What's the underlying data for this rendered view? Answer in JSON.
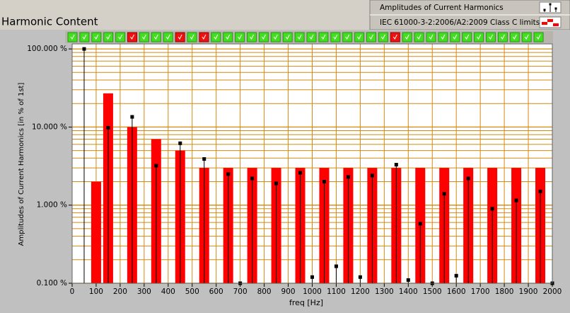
{
  "chart_data": {
    "type": "stem_bar",
    "title": "Harmonic Content",
    "x_label": "freq [Hz]",
    "y_label": "Amplitudes of Current Harmonics [in % of 1st]",
    "log_y": true,
    "grid": true,
    "grid_color": "#d48a10",
    "xlim": [
      0,
      2000
    ],
    "xticks": [
      0,
      100,
      200,
      300,
      400,
      500,
      600,
      700,
      800,
      900,
      1000,
      1100,
      1200,
      1300,
      1400,
      1500,
      1600,
      1700,
      1800,
      1900,
      2000
    ],
    "ylim": [
      0.1,
      116
    ],
    "yticks": [
      {
        "value": 0.1,
        "label": "0.100 %"
      },
      {
        "value": 1,
        "label": "1.000 %"
      },
      {
        "value": 10,
        "label": "10.000 %"
      },
      {
        "value": 100,
        "label": "100.000 %"
      }
    ],
    "y_minor_ticks": [
      0.2,
      0.3,
      0.4,
      0.5,
      0.6,
      0.7,
      0.8,
      0.9,
      2,
      3,
      4,
      5,
      6,
      7,
      8,
      9,
      20,
      30,
      40,
      50,
      60,
      70,
      80,
      90
    ],
    "legend": "top-right",
    "series": [
      {
        "name": "Amplitudes of Current Harmonics",
        "style": "stem",
        "color": "#000000",
        "x": [
          50,
          150,
          250,
          350,
          450,
          550,
          650,
          700,
          750,
          850,
          950,
          1000,
          1050,
          1100,
          1150,
          1200,
          1250,
          1350,
          1400,
          1450,
          1500,
          1550,
          1600,
          1650,
          1750,
          1850,
          1950,
          2000
        ],
        "values": [
          100,
          9.8,
          13.5,
          3.2,
          6.2,
          3.9,
          2.5,
          0.1,
          2.2,
          1.9,
          2.6,
          0.12,
          2.0,
          0.165,
          2.3,
          0.12,
          2.4,
          3.3,
          0.11,
          0.58,
          0.1,
          1.4,
          0.125,
          2.2,
          0.9,
          1.15,
          1.5,
          0.1
        ]
      },
      {
        "name": "IEC 61000-3-2:2006/A2:2009 Class C limits",
        "style": "bar",
        "color": "#ff0000",
        "x": [
          100,
          150,
          250,
          350,
          450,
          550,
          650,
          750,
          850,
          950,
          1050,
          1150,
          1250,
          1350,
          1450,
          1550,
          1650,
          1750,
          1850,
          1950
        ],
        "values": [
          2,
          27,
          10,
          7,
          5,
          3,
          3,
          3,
          3,
          3,
          3,
          3,
          3,
          3,
          3,
          3,
          3,
          3,
          3,
          3
        ]
      }
    ],
    "limit_ok": [
      true,
      true,
      true,
      true,
      true,
      false,
      true,
      true,
      true,
      false,
      true,
      false,
      true,
      true,
      true,
      true,
      true,
      true,
      true,
      true,
      true,
      true,
      true,
      true,
      true,
      true,
      true,
      false,
      true,
      true,
      true,
      true,
      true,
      true,
      true,
      true,
      true,
      true,
      true,
      true
    ]
  }
}
